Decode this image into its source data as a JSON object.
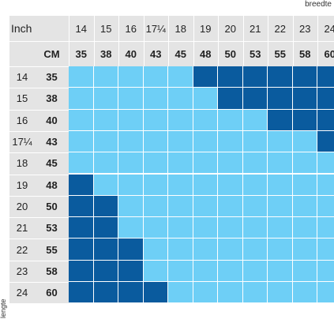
{
  "axis": {
    "top_label": "breedte",
    "side_label": "lengte"
  },
  "header": {
    "inch_label": "Inch",
    "cm_label": "CM"
  },
  "columns": [
    {
      "inch": "14",
      "cm": "35"
    },
    {
      "inch": "15",
      "cm": "38"
    },
    {
      "inch": "16",
      "cm": "40"
    },
    {
      "inch": "17¼",
      "cm": "43"
    },
    {
      "inch": "18",
      "cm": "45"
    },
    {
      "inch": "19",
      "cm": "48"
    },
    {
      "inch": "20",
      "cm": "50"
    },
    {
      "inch": "21",
      "cm": "53"
    },
    {
      "inch": "22",
      "cm": "55"
    },
    {
      "inch": "23",
      "cm": "58"
    },
    {
      "inch": "24",
      "cm": "60"
    }
  ],
  "rows": [
    {
      "inch": "14",
      "cm": "35"
    },
    {
      "inch": "15",
      "cm": "38"
    },
    {
      "inch": "16",
      "cm": "40"
    },
    {
      "inch": "17¼",
      "cm": "43"
    },
    {
      "inch": "18",
      "cm": "45"
    },
    {
      "inch": "19",
      "cm": "48"
    },
    {
      "inch": "20",
      "cm": "50"
    },
    {
      "inch": "21",
      "cm": "53"
    },
    {
      "inch": "22",
      "cm": "55"
    },
    {
      "inch": "23",
      "cm": "58"
    },
    {
      "inch": "24",
      "cm": "60"
    }
  ],
  "cell_colors": {
    "light": "#6ecff6",
    "dark": "#0a5b9e",
    "band": "#e4e4e4"
  },
  "dark_pattern": [
    [
      0,
      0,
      0,
      0,
      0,
      1,
      1,
      1,
      1,
      1,
      1
    ],
    [
      0,
      0,
      0,
      0,
      0,
      0,
      1,
      1,
      1,
      1,
      1
    ],
    [
      0,
      0,
      0,
      0,
      0,
      0,
      0,
      0,
      1,
      1,
      1
    ],
    [
      0,
      0,
      0,
      0,
      0,
      0,
      0,
      0,
      0,
      0,
      1
    ],
    [
      0,
      0,
      0,
      0,
      0,
      0,
      0,
      0,
      0,
      0,
      0
    ],
    [
      1,
      0,
      0,
      0,
      0,
      0,
      0,
      0,
      0,
      0,
      0
    ],
    [
      1,
      1,
      0,
      0,
      0,
      0,
      0,
      0,
      0,
      0,
      0
    ],
    [
      1,
      1,
      0,
      0,
      0,
      0,
      0,
      0,
      0,
      0,
      0
    ],
    [
      1,
      1,
      1,
      0,
      0,
      0,
      0,
      0,
      0,
      0,
      0
    ],
    [
      1,
      1,
      1,
      0,
      0,
      0,
      0,
      0,
      0,
      0,
      0
    ],
    [
      1,
      1,
      1,
      1,
      0,
      0,
      0,
      0,
      0,
      0,
      0
    ]
  ]
}
